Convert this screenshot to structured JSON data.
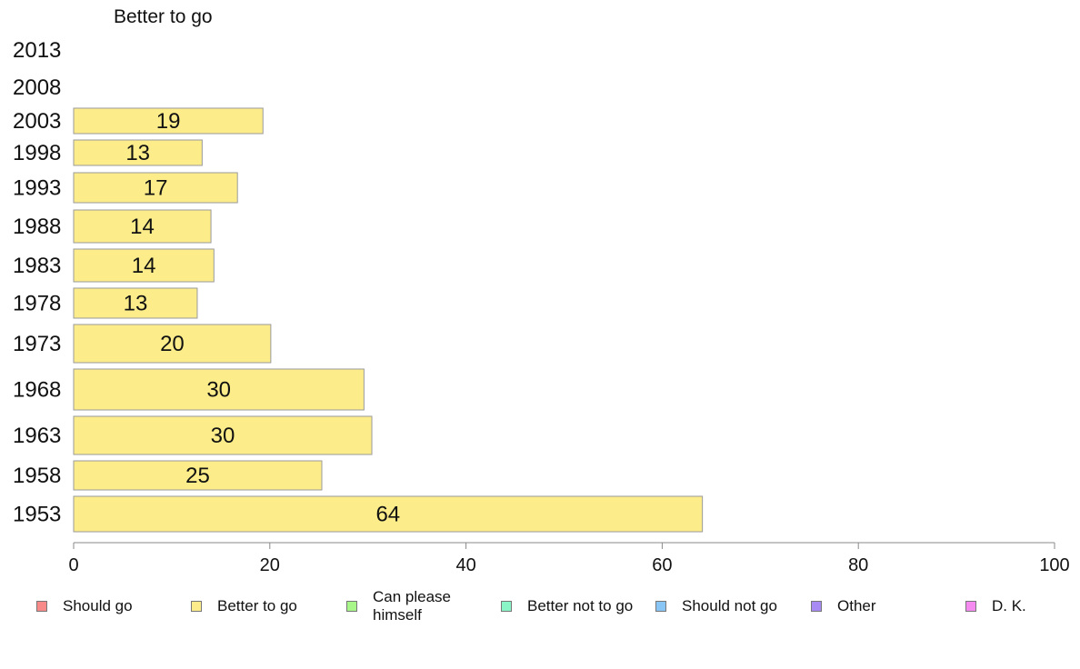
{
  "chart_data": {
    "type": "bar",
    "orientation": "horizontal",
    "title": "Better to go",
    "categories": [
      "2013",
      "2008",
      "2003",
      "1998",
      "1993",
      "1988",
      "1983",
      "1978",
      "1973",
      "1968",
      "1963",
      "1958",
      "1953"
    ],
    "series": [
      {
        "name": "Better to go",
        "values": [
          null,
          null,
          19.3,
          13.1,
          16.7,
          14.0,
          14.3,
          12.6,
          20.1,
          29.6,
          30.4,
          25.3,
          64.1
        ],
        "labels": [
          "",
          "",
          "19",
          "13",
          "17",
          "14",
          "14",
          "13",
          "20",
          "30",
          "30",
          "25",
          "64"
        ],
        "color": "#fced8a"
      }
    ],
    "xlim": [
      0,
      100
    ],
    "xticks": [
      "0",
      "20",
      "40",
      "60",
      "80",
      "100"
    ],
    "grid": false,
    "legend_position": "bottom",
    "legend": [
      {
        "label": "Should go",
        "color": "#f88a8a"
      },
      {
        "label": "Better to go",
        "color": "#fced8a"
      },
      {
        "label": "Can please\nhimself",
        "color": "#a8f58a"
      },
      {
        "label": "Better not to go",
        "color": "#8af5c6"
      },
      {
        "label": "Should not go",
        "color": "#8ac6f5"
      },
      {
        "label": "Other",
        "color": "#a88af5"
      },
      {
        "label": "D. K.",
        "color": "#f58af0"
      }
    ]
  }
}
